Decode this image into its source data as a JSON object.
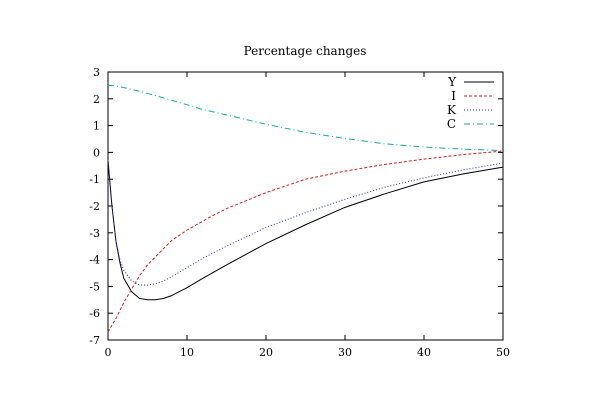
{
  "chart_data": {
    "type": "line",
    "title": "Percentage changes",
    "xlabel": "",
    "ylabel": "",
    "xlim": [
      0,
      50
    ],
    "ylim": [
      -7,
      3
    ],
    "xticks": [
      0,
      10,
      20,
      30,
      40,
      50
    ],
    "yticks": [
      -7,
      -6,
      -5,
      -4,
      -3,
      -2,
      -1,
      0,
      1,
      2,
      3
    ],
    "grid": false,
    "legend_position": "top-right",
    "series": [
      {
        "name": "Y",
        "color": "#000000",
        "dash": "solid",
        "x": [
          0,
          0.5,
          1,
          1.5,
          2,
          3,
          4,
          5,
          6,
          7,
          8,
          10,
          12,
          15,
          20,
          25,
          30,
          35,
          40,
          45,
          50
        ],
        "y": [
          -0.3,
          -2.0,
          -3.3,
          -4.1,
          -4.7,
          -5.2,
          -5.45,
          -5.5,
          -5.5,
          -5.45,
          -5.35,
          -5.05,
          -4.7,
          -4.2,
          -3.4,
          -2.7,
          -2.05,
          -1.55,
          -1.1,
          -0.8,
          -0.55
        ]
      },
      {
        "name": "I",
        "color": "#d22020",
        "dash": "red",
        "x": [
          0,
          1,
          2,
          3,
          4,
          5,
          6,
          8,
          10,
          13,
          15,
          20,
          25,
          30,
          35,
          40,
          45,
          50
        ],
        "y": [
          -6.7,
          -6.2,
          -5.6,
          -5.1,
          -4.6,
          -4.2,
          -3.9,
          -3.3,
          -2.9,
          -2.4,
          -2.1,
          -1.5,
          -1.0,
          -0.7,
          -0.45,
          -0.25,
          -0.08,
          0.05
        ]
      },
      {
        "name": "K",
        "color": "#2828c8",
        "dash": "dotted",
        "x": [
          0,
          0.5,
          1,
          1.5,
          2,
          3,
          4,
          5,
          6,
          7,
          8,
          10,
          12,
          15,
          20,
          25,
          30,
          35,
          40,
          45,
          50
        ],
        "y": [
          -0.3,
          -2.0,
          -3.3,
          -4.0,
          -4.4,
          -4.8,
          -4.95,
          -4.95,
          -4.9,
          -4.8,
          -4.65,
          -4.3,
          -3.95,
          -3.5,
          -2.8,
          -2.25,
          -1.75,
          -1.3,
          -0.95,
          -0.65,
          -0.4
        ]
      },
      {
        "name": "C",
        "color": "#1aa6a6",
        "dash": "dashdot",
        "x": [
          0,
          1,
          2,
          3,
          4,
          5,
          6,
          8,
          10,
          12,
          15,
          20,
          25,
          30,
          35,
          40,
          45,
          50
        ],
        "y": [
          2.5,
          2.48,
          2.42,
          2.35,
          2.28,
          2.2,
          2.12,
          1.95,
          1.78,
          1.6,
          1.4,
          1.05,
          0.75,
          0.52,
          0.32,
          0.2,
          0.12,
          0.07
        ]
      }
    ]
  }
}
